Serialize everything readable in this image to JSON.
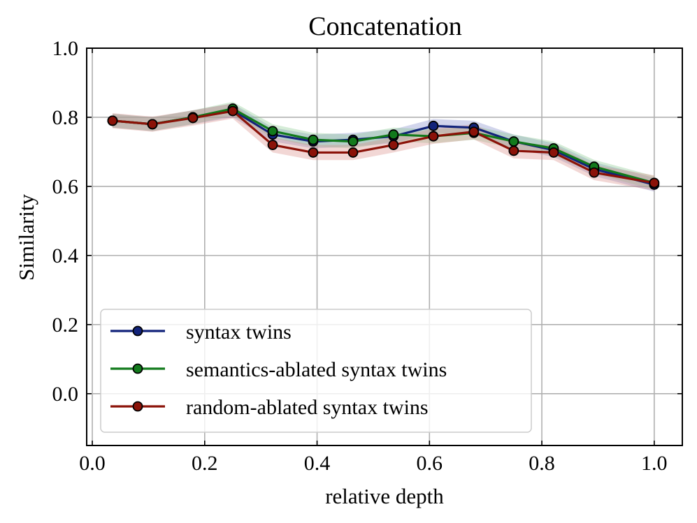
{
  "chart_data": {
    "type": "line",
    "title": "Concatenation",
    "xlabel": "relative depth",
    "ylabel": "Similarity",
    "xlim": [
      -0.01,
      1.05
    ],
    "ylim": [
      -0.15,
      1.0
    ],
    "xticks": [
      0.0,
      0.2,
      0.4,
      0.6,
      0.8,
      1.0
    ],
    "xtick_labels": [
      "0.0",
      "0.2",
      "0.4",
      "0.6",
      "0.8",
      "1.0"
    ],
    "yticks": [
      0.0,
      0.2,
      0.4,
      0.6,
      0.8,
      1.0
    ],
    "ytick_labels": [
      "0.0",
      "0.2",
      "0.4",
      "0.6",
      "0.8",
      "1.0"
    ],
    "grid": true,
    "legend_position": "lower-left",
    "x": [
      0.036,
      0.107,
      0.179,
      0.25,
      0.321,
      0.393,
      0.464,
      0.536,
      0.607,
      0.679,
      0.75,
      0.821,
      0.893,
      1.0
    ],
    "series": [
      {
        "name": "syntax twins",
        "color": "#12237a",
        "band_color": "#7f86c8",
        "values": [
          0.79,
          0.78,
          0.8,
          0.82,
          0.75,
          0.73,
          0.735,
          0.745,
          0.775,
          0.77,
          0.73,
          0.705,
          0.65,
          0.605
        ],
        "band": 0.02
      },
      {
        "name": "semantics-ablated syntax twins",
        "color": "#127a1c",
        "band_color": "#86c88c",
        "values": [
          0.79,
          0.78,
          0.8,
          0.825,
          0.76,
          0.735,
          0.73,
          0.75,
          0.745,
          0.755,
          0.73,
          0.71,
          0.657,
          0.61
        ],
        "band": 0.02
      },
      {
        "name": "random-ablated syntax twins",
        "color": "#8b1208",
        "band_color": "#d98b86",
        "values": [
          0.79,
          0.78,
          0.798,
          0.818,
          0.72,
          0.698,
          0.698,
          0.72,
          0.745,
          0.758,
          0.703,
          0.698,
          0.64,
          0.61
        ],
        "band": 0.022
      }
    ]
  }
}
